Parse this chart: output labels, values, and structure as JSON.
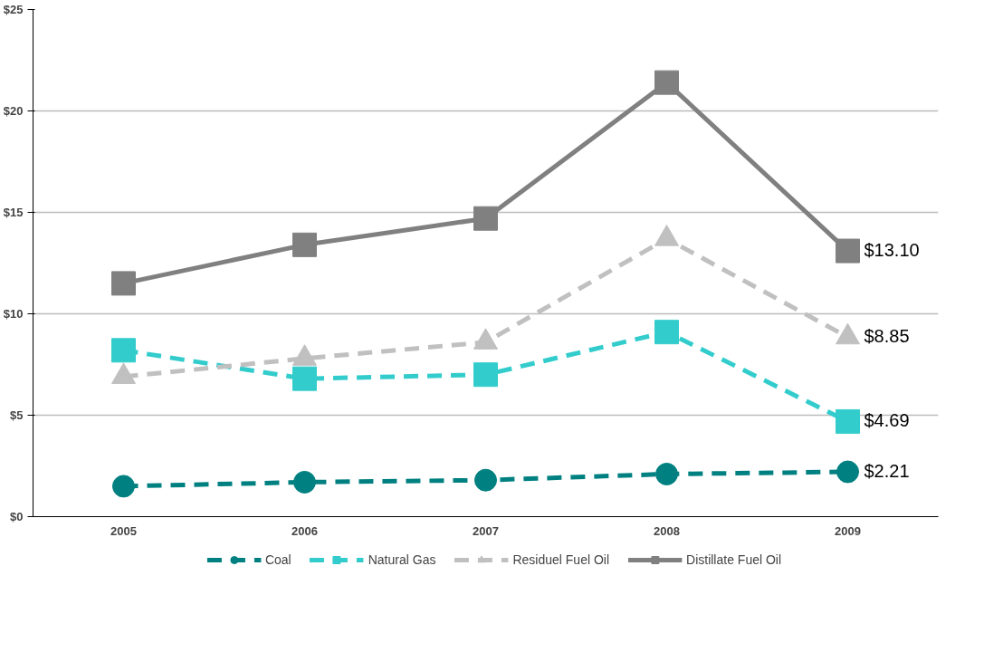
{
  "chart_data": {
    "type": "line",
    "categories": [
      "2005",
      "2006",
      "2007",
      "2008",
      "2009"
    ],
    "series": [
      {
        "name": "Coal",
        "color": "#008080",
        "marker": "circle",
        "line_style": "dashed",
        "values": [
          1.5,
          1.7,
          1.8,
          2.1,
          2.21
        ],
        "value_labels": [
          null,
          null,
          null,
          null,
          "$2.21"
        ]
      },
      {
        "name": "Natural Gas",
        "color": "#33cccc",
        "marker": "square",
        "line_style": "dashed",
        "values": [
          8.2,
          6.8,
          7.0,
          9.1,
          4.69
        ],
        "value_labels": [
          null,
          null,
          null,
          null,
          "$4.69"
        ]
      },
      {
        "name": "Residuel Fuel Oil",
        "color": "#c0c0c0",
        "marker": "triangle",
        "line_style": "dashed",
        "values": [
          6.9,
          7.8,
          8.6,
          13.7,
          8.85
        ],
        "value_labels": [
          null,
          null,
          null,
          null,
          "$8.85"
        ]
      },
      {
        "name": "Distillate Fuel Oil",
        "color": "#808080",
        "marker": "square",
        "line_style": "solid",
        "values": [
          11.5,
          13.4,
          14.7,
          21.4,
          13.1
        ],
        "value_labels": [
          null,
          null,
          null,
          null,
          "$13.10"
        ]
      }
    ],
    "ylim": [
      0,
      25
    ],
    "yticks": [
      {
        "value": 0,
        "label": "$0"
      },
      {
        "value": 5,
        "label": "$5"
      },
      {
        "value": 10,
        "label": "$10"
      },
      {
        "value": 15,
        "label": "$15"
      },
      {
        "value": 20,
        "label": "$20"
      },
      {
        "value": 25,
        "label": "$25"
      }
    ],
    "grid": "y",
    "legend": "bottom"
  }
}
